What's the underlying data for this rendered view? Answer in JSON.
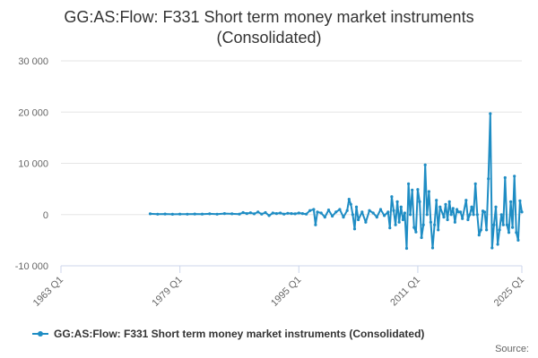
{
  "chart_data": {
    "type": "line",
    "title_line1": "GG:AS:Flow: F331 Short term money market instruments",
    "title_line2": "(Consolidated)",
    "xlabel": "",
    "ylabel": "",
    "x_ticks": [
      "1963 Q1",
      "1979 Q1",
      "1995 Q1",
      "2011 Q1",
      "2025 Q1"
    ],
    "y_ticks": [
      "30 000",
      "20 000",
      "10 000",
      "0",
      "-10 000"
    ],
    "ylim": [
      -10000,
      30000
    ],
    "xlim": [
      1963.0,
      2025.0
    ],
    "grid": true,
    "legend_position": "bottom",
    "series": [
      {
        "name": "GG:AS:Flow: F331 Short term money market instruments (Consolidated)",
        "color": "#1f8dc4",
        "points": [
          [
            1975.0,
            150
          ],
          [
            1976.0,
            80
          ],
          [
            1977.0,
            120
          ],
          [
            1978.0,
            60
          ],
          [
            1979.0,
            100
          ],
          [
            1980.0,
            80
          ],
          [
            1981.0,
            120
          ],
          [
            1982.0,
            100
          ],
          [
            1983.0,
            150
          ],
          [
            1984.0,
            80
          ],
          [
            1985.0,
            200
          ],
          [
            1986.0,
            150
          ],
          [
            1987.0,
            100
          ],
          [
            1987.5,
            400
          ],
          [
            1988.0,
            200
          ],
          [
            1988.5,
            350
          ],
          [
            1989.0,
            150
          ],
          [
            1989.5,
            500
          ],
          [
            1990.0,
            100
          ],
          [
            1990.5,
            400
          ],
          [
            1991.0,
            -200
          ],
          [
            1991.5,
            300
          ],
          [
            1992.0,
            200
          ],
          [
            1992.5,
            300
          ],
          [
            1993.0,
            100
          ],
          [
            1993.5,
            250
          ],
          [
            1994.0,
            200
          ],
          [
            1994.5,
            150
          ],
          [
            1995.0,
            300
          ],
          [
            1995.5,
            200
          ],
          [
            1996.0,
            100
          ],
          [
            1996.5,
            800
          ],
          [
            1997.0,
            1000
          ],
          [
            1997.25,
            -2000
          ],
          [
            1997.5,
            500
          ],
          [
            1998.0,
            300
          ],
          [
            1998.5,
            -500
          ],
          [
            1999.0,
            900
          ],
          [
            1999.5,
            -300
          ],
          [
            2000.0,
            500
          ],
          [
            2000.5,
            1000
          ],
          [
            2001.0,
            -500
          ],
          [
            2001.5,
            800
          ],
          [
            2001.75,
            3000
          ],
          [
            2002.0,
            2000
          ],
          [
            2002.25,
            0
          ],
          [
            2002.5,
            -2800
          ],
          [
            2002.75,
            1500
          ],
          [
            2003.0,
            -1000
          ],
          [
            2003.5,
            500
          ],
          [
            2004.0,
            -1500
          ],
          [
            2004.5,
            800
          ],
          [
            2005.0,
            300
          ],
          [
            2005.5,
            -500
          ],
          [
            2006.0,
            1000
          ],
          [
            2006.5,
            -200
          ],
          [
            2007.0,
            500
          ],
          [
            2007.25,
            -2600
          ],
          [
            2007.5,
            3500
          ],
          [
            2007.75,
            800
          ],
          [
            2008.0,
            -2000
          ],
          [
            2008.25,
            2500
          ],
          [
            2008.5,
            -1500
          ],
          [
            2008.75,
            1500
          ],
          [
            2009.0,
            -1000
          ],
          [
            2009.25,
            300
          ],
          [
            2009.5,
            -6600
          ],
          [
            2009.75,
            6000
          ],
          [
            2010.0,
            0
          ],
          [
            2010.25,
            4800
          ],
          [
            2010.5,
            -2500
          ],
          [
            2010.75,
            -3400
          ],
          [
            2011.0,
            4900
          ],
          [
            2011.25,
            2500
          ],
          [
            2011.5,
            -4500
          ],
          [
            2011.75,
            -2000
          ],
          [
            2012.0,
            9700
          ],
          [
            2012.25,
            0
          ],
          [
            2012.5,
            4500
          ],
          [
            2012.75,
            -1500
          ],
          [
            2013.0,
            -6500
          ],
          [
            2013.25,
            -2000
          ],
          [
            2013.5,
            2800
          ],
          [
            2013.75,
            -3000
          ],
          [
            2014.0,
            1500
          ],
          [
            2014.5,
            -500
          ],
          [
            2014.75,
            2000
          ],
          [
            2015.0,
            -1000
          ],
          [
            2015.25,
            2500
          ],
          [
            2015.5,
            0
          ],
          [
            2015.75,
            1200
          ],
          [
            2016.0,
            -1500
          ],
          [
            2016.25,
            1000
          ],
          [
            2016.5,
            500
          ],
          [
            2016.75,
            500
          ],
          [
            2017.0,
            -800
          ],
          [
            2017.5,
            2800
          ],
          [
            2017.75,
            -1000
          ],
          [
            2018.0,
            0
          ],
          [
            2018.25,
            1500
          ],
          [
            2018.5,
            0
          ],
          [
            2018.75,
            6000
          ],
          [
            2019.0,
            0
          ],
          [
            2019.25,
            -4000
          ],
          [
            2019.5,
            -3000
          ],
          [
            2019.75,
            700
          ],
          [
            2020.0,
            500
          ],
          [
            2020.25,
            -3000
          ],
          [
            2020.5,
            7000
          ],
          [
            2020.75,
            19700
          ],
          [
            2021.0,
            -6500
          ],
          [
            2021.25,
            -2000
          ],
          [
            2021.5,
            1500
          ],
          [
            2021.75,
            -5800
          ],
          [
            2022.0,
            -3000
          ],
          [
            2022.25,
            0
          ],
          [
            2022.5,
            -2000
          ],
          [
            2022.75,
            7200
          ],
          [
            2023.0,
            -2000
          ],
          [
            2023.25,
            -3500
          ],
          [
            2023.5,
            2500
          ],
          [
            2023.75,
            -2500
          ],
          [
            2024.0,
            7500
          ],
          [
            2024.25,
            -3500
          ],
          [
            2024.5,
            -5000
          ],
          [
            2024.75,
            2700
          ],
          [
            2025.0,
            500
          ]
        ]
      }
    ],
    "source_label": "Source:"
  }
}
